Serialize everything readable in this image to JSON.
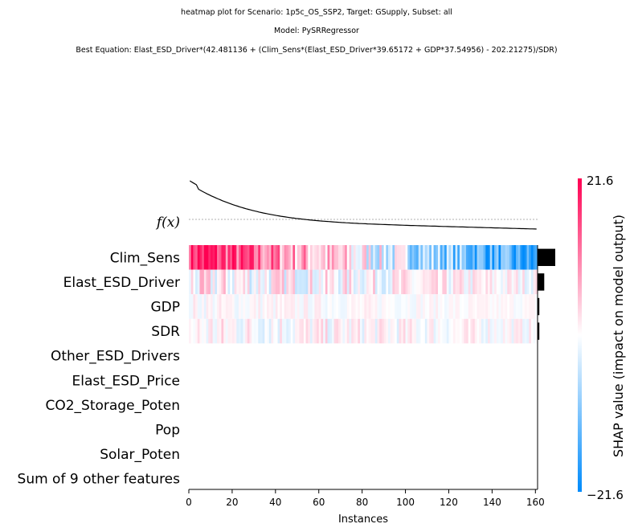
{
  "chart_data": {
    "type": "heatmap",
    "title_lines": [
      "heatmap plot for Scenario: 1p5c_OS_SSP2, Target: GSupply, Subset: all",
      "Model: PySRRegressor",
      "Best Equation: Elast_ESD_Driver*(42.481136 + (Clim_Sens*(Elast_ESD_Driver*39.65172 + GDP*37.54956) - 202.21275)/SDR)"
    ],
    "xlabel": "Instances",
    "x_ticks": [
      0,
      20,
      40,
      60,
      80,
      100,
      120,
      140,
      160
    ],
    "xlim": [
      0,
      161
    ],
    "n_instances": 161,
    "fx_label": "f(x)",
    "features": [
      {
        "name": "Clim_Sens",
        "importance": 8.0,
        "intensity": 0.9
      },
      {
        "name": "Elast_ESD_Driver",
        "importance": 3.0,
        "intensity": 0.42
      },
      {
        "name": "GDP",
        "importance": 0.8,
        "intensity": 0.15
      },
      {
        "name": "SDR",
        "importance": 0.8,
        "intensity": 0.3
      },
      {
        "name": "Other_ESD_Drivers",
        "importance": 0,
        "intensity": 0
      },
      {
        "name": "Elast_ESD_Price",
        "importance": 0,
        "intensity": 0
      },
      {
        "name": "CO2_Storage_Poten",
        "importance": 0,
        "intensity": 0
      },
      {
        "name": "Pop",
        "importance": 0,
        "intensity": 0
      },
      {
        "name": "Solar_Poten",
        "importance": 0,
        "intensity": 0
      },
      {
        "name": "Sum of 9 other features",
        "importance": 0,
        "intensity": 0
      }
    ],
    "colorbar": {
      "label": "SHAP value (impact on model output)",
      "max_label": "21.6",
      "min_label": "−21.6",
      "vmin": -21.6,
      "vmax": 21.6,
      "high_color": "#ff0052",
      "low_color": "#008bfb",
      "mid_color": "#ffffff"
    }
  }
}
